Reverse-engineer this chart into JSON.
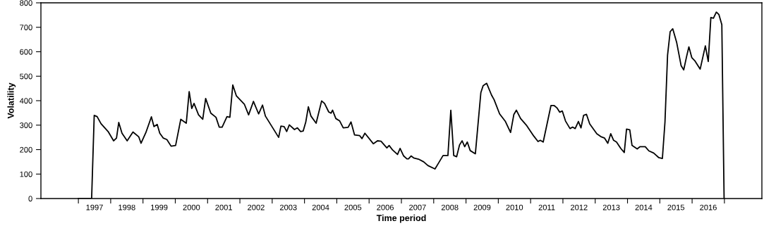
{
  "chart_data": {
    "type": "line",
    "xlabel": "Time period",
    "ylabel": "Volatility",
    "xlim": [
      1995.84,
      2018.16
    ],
    "ylim": [
      0,
      800
    ],
    "yticks": [
      0,
      100,
      200,
      300,
      400,
      500,
      600,
      700,
      800
    ],
    "xticks": [
      {
        "value": 1997,
        "label": null
      },
      {
        "value": 1997.5,
        "label": "1997"
      },
      {
        "value": 1998,
        "label": null
      },
      {
        "value": 1998.5,
        "label": "1998"
      },
      {
        "value": 1999,
        "label": null
      },
      {
        "value": 1999.5,
        "label": "1999"
      },
      {
        "value": 2000,
        "label": null
      },
      {
        "value": 2000.5,
        "label": "2000"
      },
      {
        "value": 2001,
        "label": null
      },
      {
        "value": 2001.5,
        "label": "2001"
      },
      {
        "value": 2002,
        "label": null
      },
      {
        "value": 2002.5,
        "label": "2002"
      },
      {
        "value": 2003,
        "label": null
      },
      {
        "value": 2003.5,
        "label": "2003"
      },
      {
        "value": 2004,
        "label": null
      },
      {
        "value": 2004.5,
        "label": "2004"
      },
      {
        "value": 2005,
        "label": null
      },
      {
        "value": 2005.5,
        "label": "2005"
      },
      {
        "value": 2006,
        "label": null
      },
      {
        "value": 2006.5,
        "label": "2006"
      },
      {
        "value": 2007,
        "label": null
      },
      {
        "value": 2007.5,
        "label": "2007"
      },
      {
        "value": 2008,
        "label": null
      },
      {
        "value": 2008.5,
        "label": "2008"
      },
      {
        "value": 2009,
        "label": null
      },
      {
        "value": 2009.5,
        "label": "2009"
      },
      {
        "value": 2010,
        "label": null
      },
      {
        "value": 2010.5,
        "label": "2010"
      },
      {
        "value": 2011,
        "label": null
      },
      {
        "value": 2011.5,
        "label": "2011"
      },
      {
        "value": 2012,
        "label": null
      },
      {
        "value": 2012.5,
        "label": "2012"
      },
      {
        "value": 2013,
        "label": null
      },
      {
        "value": 2013.5,
        "label": "2013"
      },
      {
        "value": 2014,
        "label": null
      },
      {
        "value": 2014.5,
        "label": "2014"
      },
      {
        "value": 2015,
        "label": null
      },
      {
        "value": 2015.5,
        "label": "2015"
      },
      {
        "value": 2016,
        "label": null
      },
      {
        "value": 2016.5,
        "label": "2016"
      },
      {
        "value": 2017,
        "label": null
      }
    ],
    "grid": false,
    "legend": false,
    "marker": "none",
    "line_style": "solid",
    "series": [
      {
        "color": "#000000",
        "x": [
          1997.0,
          1997.41,
          1997.49,
          1997.58,
          1997.7,
          1997.92,
          1998.09,
          1998.18,
          1998.25,
          1998.35,
          1998.51,
          1998.69,
          1998.87,
          1998.94,
          1999.09,
          1999.26,
          1999.34,
          1999.44,
          1999.52,
          1999.63,
          1999.74,
          1999.87,
          2000.01,
          2000.17,
          2000.34,
          2000.43,
          2000.51,
          2000.58,
          2000.72,
          2000.85,
          2000.94,
          2001.1,
          2001.26,
          2001.36,
          2001.45,
          2001.6,
          2001.69,
          2001.78,
          2001.89,
          2002.14,
          2002.27,
          2002.42,
          2002.58,
          2002.7,
          2002.79,
          2003.2,
          2003.27,
          2003.37,
          2003.45,
          2003.53,
          2003.69,
          2003.78,
          2003.88,
          2003.96,
          2004.04,
          2004.12,
          2004.2,
          2004.36,
          2004.53,
          2004.62,
          2004.75,
          2004.82,
          2004.87,
          2004.97,
          2005.09,
          2005.2,
          2005.35,
          2005.44,
          2005.55,
          2005.71,
          2005.78,
          2005.87,
          2006.13,
          2006.26,
          2006.37,
          2006.55,
          2006.62,
          2006.73,
          2006.88,
          2006.96,
          2007.07,
          2007.17,
          2007.22,
          2007.3,
          2007.38,
          2007.53,
          2007.69,
          2007.82,
          2008.04,
          2008.15,
          2008.29,
          2008.44,
          2008.53,
          2008.62,
          2008.71,
          2008.8,
          2008.88,
          2008.96,
          2009.04,
          2009.13,
          2009.29,
          2009.46,
          2009.53,
          2009.64,
          2009.79,
          2009.87,
          2010.04,
          2010.22,
          2010.38,
          2010.48,
          2010.56,
          2010.69,
          2010.88,
          2011.1,
          2011.23,
          2011.3,
          2011.39,
          2011.63,
          2011.73,
          2011.82,
          2011.9,
          2011.98,
          2012.08,
          2012.22,
          2012.3,
          2012.38,
          2012.48,
          2012.56,
          2012.64,
          2012.73,
          2012.83,
          2013.05,
          2013.19,
          2013.29,
          2013.39,
          2013.48,
          2013.57,
          2013.66,
          2013.79,
          2013.9,
          2013.97,
          2014.07,
          2014.14,
          2014.3,
          2014.39,
          2014.55,
          2014.66,
          2014.81,
          2014.97,
          2015.08,
          2015.16,
          2015.24,
          2015.32,
          2015.4,
          2015.52,
          2015.66,
          2015.74,
          2015.83,
          2015.9,
          2015.99,
          2016.08,
          2016.25,
          2016.41,
          2016.5,
          2016.58,
          2016.66,
          2016.75,
          2016.83,
          2016.92,
          2016.99
        ],
        "values": [
          0,
          0,
          340,
          335,
          306,
          274,
          236,
          247,
          311,
          267,
          236,
          272,
          252,
          226,
          270,
          334,
          294,
          303,
          267,
          247,
          241,
          214,
          217,
          324,
          308,
          437,
          368,
          389,
          342,
          324,
          409,
          349,
          332,
          292,
          292,
          335,
          332,
          464,
          420,
          385,
          342,
          397,
          346,
          382,
          337,
          250,
          296,
          294,
          274,
          301,
          282,
          289,
          274,
          276,
          313,
          375,
          337,
          308,
          399,
          389,
          354,
          349,
          361,
          327,
          317,
          289,
          291,
          313,
          260,
          257,
          245,
          267,
          224,
          236,
          234,
          207,
          217,
          198,
          180,
          205,
          174,
          162,
          162,
          174,
          166,
          161,
          150,
          135,
          121,
          145,
          176,
          176,
          361,
          176,
          171,
          219,
          236,
          212,
          231,
          196,
          183,
          433,
          461,
          471,
          423,
          404,
          346,
          315,
          270,
          343,
          361,
          327,
          298,
          255,
          233,
          238,
          231,
          380,
          380,
          370,
          353,
          358,
          317,
          286,
          292,
          286,
          315,
          289,
          340,
          344,
          305,
          265,
          252,
          247,
          226,
          265,
          238,
          231,
          205,
          188,
          284,
          281,
          217,
          203,
          212,
          212,
          195,
          186,
          167,
          164,
          313,
          586,
          682,
          694,
          639,
          543,
          526,
          581,
          620,
          576,
          564,
          529,
          624,
          560,
          740,
          737,
          762,
          752,
          711,
          0
        ]
      }
    ]
  }
}
